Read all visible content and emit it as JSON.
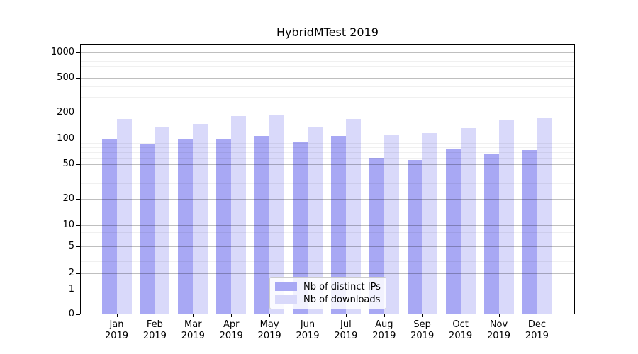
{
  "figure": {
    "background": "#ffffff",
    "axis_color": "#000000",
    "grid_major_color": "#bfbfbf",
    "grid_minor_color": "#efefef"
  },
  "chart_data": {
    "type": "bar",
    "title": "HybridMTest 2019",
    "yscale": "symlog",
    "grid": true,
    "legend_position": "lower-center-inside",
    "xlabel": "",
    "ylabel": "",
    "ylim": [
      0,
      1200
    ],
    "y_ticks": [
      0,
      1,
      2,
      5,
      10,
      20,
      50,
      100,
      200,
      500,
      1000
    ],
    "categories": [
      "Jan",
      "Feb",
      "Mar",
      "Apr",
      "May",
      "Jun",
      "Jul",
      "Aug",
      "Sep",
      "Oct",
      "Nov",
      "Dec"
    ],
    "x_year_label": "2019",
    "series": [
      {
        "name": "Nb of distinct IPs",
        "color": "#a8a8f4",
        "values": [
          100,
          85,
          100,
          101,
          107,
          93,
          107,
          59,
          56,
          77,
          67,
          74
        ]
      },
      {
        "name": "Nb of downloads",
        "color": "#d9d9fa",
        "values": [
          170,
          135,
          149,
          183,
          186,
          137,
          169,
          109,
          116,
          132,
          166,
          171
        ]
      }
    ]
  }
}
